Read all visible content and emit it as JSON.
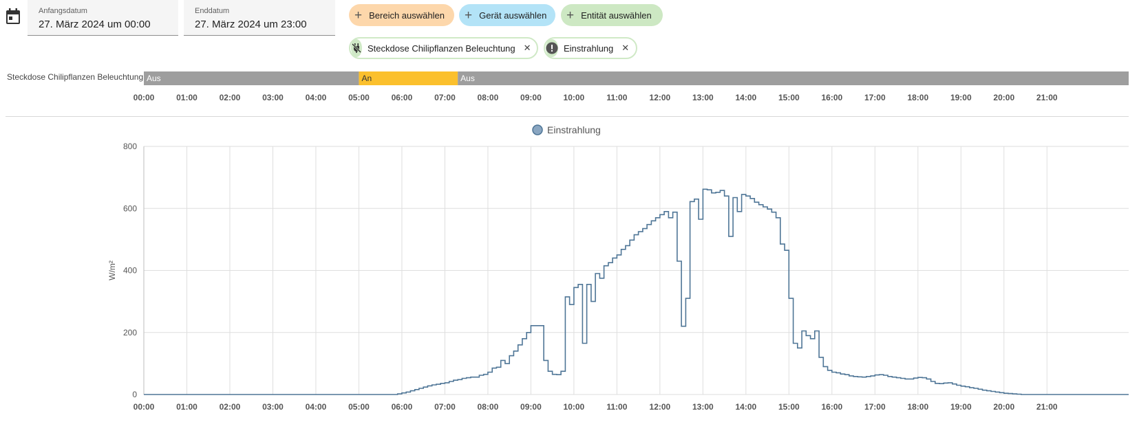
{
  "start_date": {
    "label": "Anfangsdatum",
    "value": "27. März 2024 um 00:00"
  },
  "end_date": {
    "label": "Enddatum",
    "value": "27. März 2024 um 23:00"
  },
  "pickers": {
    "area": "Bereich auswählen",
    "device": "Gerät auswählen",
    "entity": "Entität auswählen"
  },
  "targets": [
    {
      "label": "Steckdose Chilipflanzen Beleuchtung",
      "icon": "power-plug-off-icon"
    },
    {
      "label": "Einstrahlung",
      "icon": "alert-circle-icon"
    }
  ],
  "colors": {
    "on": "#fbc02d",
    "off": "#9e9e9e",
    "line": "#4e7596",
    "legend_fill": "#8aa6c1"
  },
  "timeline": {
    "entity": "Steckdose Chilipflanzen Beleuchtung",
    "segments": [
      {
        "state": "Aus",
        "start": 0,
        "end": 5.0
      },
      {
        "state": "An",
        "start": 5.0,
        "end": 7.3
      },
      {
        "state": "Aus",
        "start": 7.3,
        "end": 22.9
      }
    ],
    "ticks": [
      "00:00",
      "01:00",
      "02:00",
      "03:00",
      "04:00",
      "05:00",
      "06:00",
      "07:00",
      "08:00",
      "09:00",
      "10:00",
      "11:00",
      "12:00",
      "13:00",
      "14:00",
      "15:00",
      "16:00",
      "17:00",
      "18:00",
      "19:00",
      "20:00",
      "21:00"
    ]
  },
  "chart_data": {
    "type": "line",
    "step": true,
    "legend": "Einstrahlung",
    "legend_position": "top-center",
    "ylabel": "W/m²",
    "xlim": [
      0,
      22.9
    ],
    "ylim": [
      0,
      800
    ],
    "yticks": [
      "0",
      "200",
      "400",
      "600",
      "800"
    ],
    "xticks": [
      "00:00",
      "01:00",
      "02:00",
      "03:00",
      "04:00",
      "05:00",
      "06:00",
      "07:00",
      "08:00",
      "09:00",
      "10:00",
      "11:00",
      "12:00",
      "13:00",
      "14:00",
      "15:00",
      "16:00",
      "17:00",
      "18:00",
      "19:00",
      "20:00",
      "21:00"
    ],
    "grid": true,
    "series": [
      {
        "name": "Einstrahlung",
        "points": [
          [
            0,
            0
          ],
          [
            5.8,
            0
          ],
          [
            5.9,
            2
          ],
          [
            6.0,
            5
          ],
          [
            6.1,
            8
          ],
          [
            6.2,
            12
          ],
          [
            6.3,
            16
          ],
          [
            6.4,
            20
          ],
          [
            6.5,
            24
          ],
          [
            6.6,
            28
          ],
          [
            6.7,
            31
          ],
          [
            6.8,
            33
          ],
          [
            6.9,
            36
          ],
          [
            7.0,
            38
          ],
          [
            7.1,
            42
          ],
          [
            7.2,
            46
          ],
          [
            7.3,
            48
          ],
          [
            7.4,
            52
          ],
          [
            7.5,
            54
          ],
          [
            7.6,
            56
          ],
          [
            7.7,
            56
          ],
          [
            7.8,
            62
          ],
          [
            7.9,
            65
          ],
          [
            8.0,
            72
          ],
          [
            8.1,
            85
          ],
          [
            8.2,
            88
          ],
          [
            8.3,
            110
          ],
          [
            8.4,
            100
          ],
          [
            8.5,
            125
          ],
          [
            8.6,
            140
          ],
          [
            8.7,
            160
          ],
          [
            8.8,
            180
          ],
          [
            8.9,
            200
          ],
          [
            9.0,
            222
          ],
          [
            9.15,
            222
          ],
          [
            9.3,
            110
          ],
          [
            9.4,
            75
          ],
          [
            9.5,
            65
          ],
          [
            9.6,
            64
          ],
          [
            9.7,
            75
          ],
          [
            9.8,
            315
          ],
          [
            9.9,
            290
          ],
          [
            10.0,
            345
          ],
          [
            10.1,
            355
          ],
          [
            10.2,
            165
          ],
          [
            10.3,
            355
          ],
          [
            10.4,
            300
          ],
          [
            10.5,
            390
          ],
          [
            10.6,
            375
          ],
          [
            10.7,
            415
          ],
          [
            10.8,
            425
          ],
          [
            10.9,
            440
          ],
          [
            11.0,
            450
          ],
          [
            11.1,
            468
          ],
          [
            11.2,
            480
          ],
          [
            11.3,
            498
          ],
          [
            11.4,
            515
          ],
          [
            11.5,
            525
          ],
          [
            11.6,
            535
          ],
          [
            11.7,
            548
          ],
          [
            11.8,
            560
          ],
          [
            11.9,
            570
          ],
          [
            12.0,
            580
          ],
          [
            12.1,
            590
          ],
          [
            12.2,
            570
          ],
          [
            12.3,
            588
          ],
          [
            12.4,
            430
          ],
          [
            12.5,
            220
          ],
          [
            12.6,
            310
          ],
          [
            12.7,
            622
          ],
          [
            12.8,
            630
          ],
          [
            12.9,
            565
          ],
          [
            13.0,
            662
          ],
          [
            13.1,
            660
          ],
          [
            13.2,
            650
          ],
          [
            13.3,
            652
          ],
          [
            13.4,
            658
          ],
          [
            13.5,
            640
          ],
          [
            13.6,
            510
          ],
          [
            13.7,
            635
          ],
          [
            13.8,
            590
          ],
          [
            13.9,
            645
          ],
          [
            14.0,
            640
          ],
          [
            14.1,
            632
          ],
          [
            14.2,
            620
          ],
          [
            14.3,
            612
          ],
          [
            14.4,
            605
          ],
          [
            14.5,
            598
          ],
          [
            14.6,
            588
          ],
          [
            14.7,
            570
          ],
          [
            14.8,
            485
          ],
          [
            14.9,
            465
          ],
          [
            15.0,
            310
          ],
          [
            15.1,
            165
          ],
          [
            15.2,
            150
          ],
          [
            15.3,
            205
          ],
          [
            15.4,
            190
          ],
          [
            15.5,
            180
          ],
          [
            15.6,
            205
          ],
          [
            15.7,
            120
          ],
          [
            15.8,
            90
          ],
          [
            15.9,
            78
          ],
          [
            16.0,
            72
          ],
          [
            16.1,
            70
          ],
          [
            16.2,
            66
          ],
          [
            16.3,
            64
          ],
          [
            16.4,
            60
          ],
          [
            16.5,
            58
          ],
          [
            16.6,
            57
          ],
          [
            16.7,
            56
          ],
          [
            16.8,
            58
          ],
          [
            16.9,
            60
          ],
          [
            17.0,
            63
          ],
          [
            17.1,
            64
          ],
          [
            17.2,
            62
          ],
          [
            17.3,
            58
          ],
          [
            17.4,
            56
          ],
          [
            17.5,
            54
          ],
          [
            17.6,
            52
          ],
          [
            17.7,
            50
          ],
          [
            17.8,
            50
          ],
          [
            17.9,
            53
          ],
          [
            18.0,
            55
          ],
          [
            18.1,
            54
          ],
          [
            18.2,
            50
          ],
          [
            18.3,
            42
          ],
          [
            18.4,
            36
          ],
          [
            18.5,
            35
          ],
          [
            18.6,
            37
          ],
          [
            18.7,
            38
          ],
          [
            18.8,
            34
          ],
          [
            18.9,
            30
          ],
          [
            19.0,
            27
          ],
          [
            19.1,
            25
          ],
          [
            19.2,
            22
          ],
          [
            19.3,
            20
          ],
          [
            19.4,
            17
          ],
          [
            19.5,
            14
          ],
          [
            19.6,
            12
          ],
          [
            19.7,
            10
          ],
          [
            19.8,
            8
          ],
          [
            19.9,
            6
          ],
          [
            20.0,
            4
          ],
          [
            20.1,
            3
          ],
          [
            20.2,
            2
          ],
          [
            20.3,
            1
          ],
          [
            20.4,
            0
          ],
          [
            22.9,
            0
          ]
        ]
      }
    ]
  }
}
